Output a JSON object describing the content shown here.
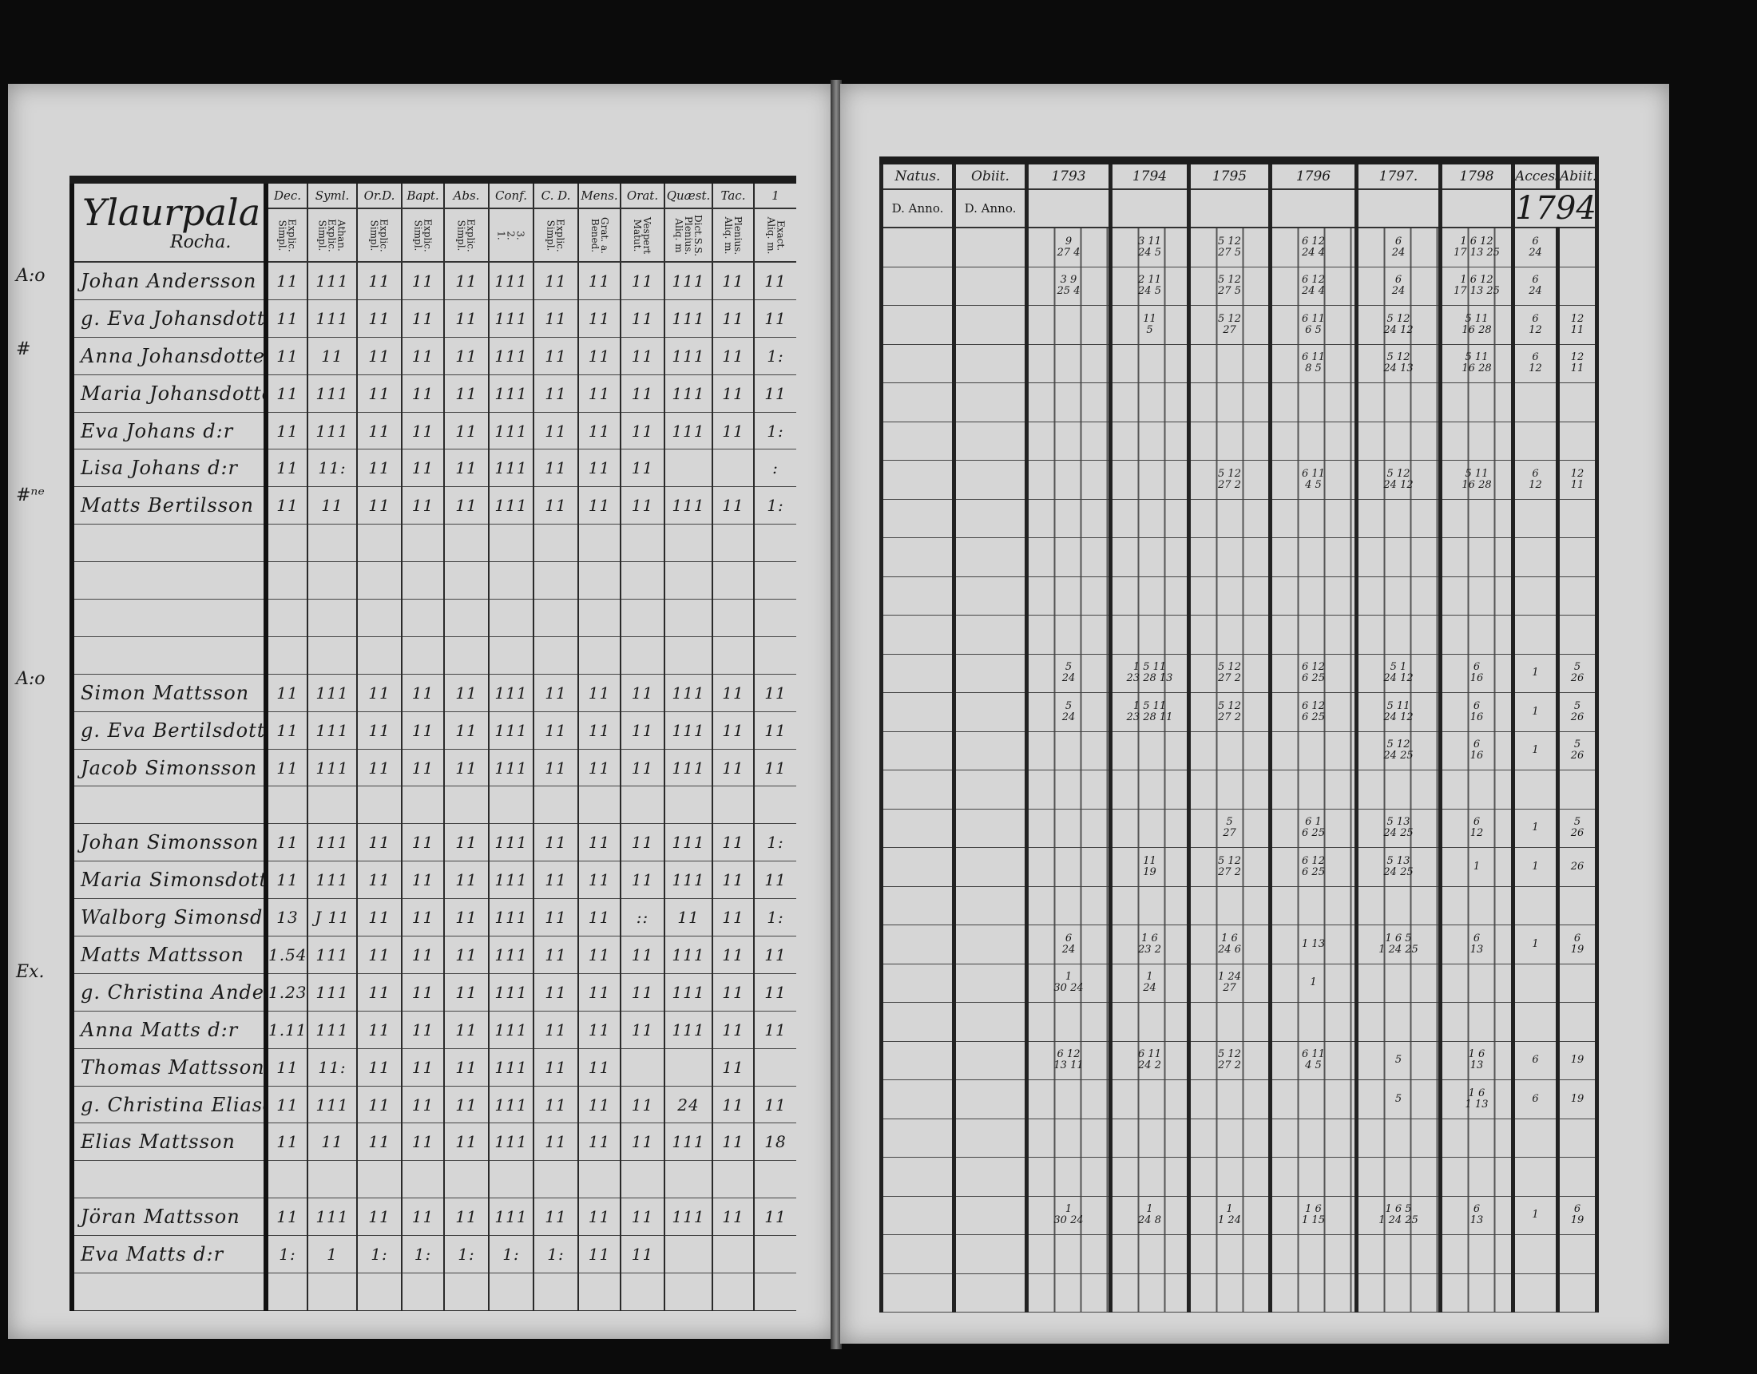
{
  "left_page": {
    "title": "Ylaurpala",
    "subtitle": "Rocha.",
    "columns": [
      {
        "label": "Dec.",
        "sub": "Explic.\nSimpl."
      },
      {
        "label": "Syml.",
        "sub": "Athan.\nExplic.\nSimpl."
      },
      {
        "label": "Or.D.",
        "sub": "Explic.\nSimpl."
      },
      {
        "label": "Bapt.",
        "sub": "Explic.\nSimpl."
      },
      {
        "label": "Abs.",
        "sub": "Explic.\nSimpl."
      },
      {
        "label": "Conf.",
        "sub": "3.\n2.\n1."
      },
      {
        "label": "C. D.",
        "sub": "Explic.\nSimpl."
      },
      {
        "label": "Mens.",
        "sub": "Grat. a.\nBened."
      },
      {
        "label": "Orat.",
        "sub": "Vespert\nMatut."
      },
      {
        "label": "Quæst.",
        "sub": "Dict.S.S.\nPlenius.\nAliq. m"
      },
      {
        "label": "Tac.",
        "sub": "Plenius.\nAliq. m."
      },
      {
        "label": "1",
        "sub": "Exact.\nAliq. m."
      }
    ],
    "rows": [
      {
        "note": "A:o",
        "name": "Johan Andersson",
        "marks": [
          "11",
          "111",
          "11",
          "11",
          "11",
          "111",
          "11",
          "11",
          "11",
          "111",
          "11",
          "11"
        ]
      },
      {
        "note": "",
        "name": "g. Eva Johansdotter",
        "marks": [
          "11",
          "111",
          "11",
          "11",
          "11",
          "111",
          "11",
          "11",
          "11",
          "111",
          "11",
          "11"
        ]
      },
      {
        "note": "#",
        "name": "Anna Johansdotter",
        "marks": [
          "11",
          "11",
          "11",
          "11",
          "11",
          "111",
          "11",
          "11",
          "11",
          "111",
          "11",
          "1:"
        ]
      },
      {
        "note": "",
        "name": "Maria Johansdotter",
        "marks": [
          "11",
          "111",
          "11",
          "11",
          "11",
          "111",
          "11",
          "11",
          "11",
          "111",
          "11",
          "11"
        ]
      },
      {
        "note": "",
        "name": "Eva Johans d:r",
        "marks": [
          "11",
          "111",
          "11",
          "11",
          "11",
          "111",
          "11",
          "11",
          "11",
          "111",
          "11",
          "1:"
        ]
      },
      {
        "note": "",
        "name": "Lisa Johans d:r",
        "marks": [
          "11",
          "11:",
          "11",
          "11",
          "11",
          "111",
          "11",
          "11",
          "11",
          "",
          "",
          ":"
        ]
      },
      {
        "note": "#ⁿᵉ",
        "name": "Matts Bertilsson",
        "marks": [
          "11",
          "11",
          "11",
          "11",
          "11",
          "111",
          "11",
          "11",
          "11",
          "111",
          "11",
          "1:"
        ]
      },
      {
        "note": "",
        "name": "",
        "marks": []
      },
      {
        "note": "",
        "name": "",
        "marks": []
      },
      {
        "note": "",
        "name": "",
        "marks": []
      },
      {
        "note": "",
        "name": "",
        "marks": []
      },
      {
        "note": "A:o",
        "name": "Simon Mattsson",
        "marks": [
          "11",
          "111",
          "11",
          "11",
          "11",
          "111",
          "11",
          "11",
          "11",
          "111",
          "11",
          "11"
        ]
      },
      {
        "note": "",
        "name": "g. Eva Bertilsdotter",
        "marks": [
          "11",
          "111",
          "11",
          "11",
          "11",
          "111",
          "11",
          "11",
          "11",
          "111",
          "11",
          "11"
        ]
      },
      {
        "note": "",
        "name": "Jacob Simonsson",
        "marks": [
          "11",
          "111",
          "11",
          "11",
          "11",
          "111",
          "11",
          "11",
          "11",
          "111",
          "11",
          "11"
        ]
      },
      {
        "note": "",
        "name": "",
        "marks": []
      },
      {
        "note": "",
        "name": "Johan Simonsson",
        "marks": [
          "11",
          "111",
          "11",
          "11",
          "11",
          "111",
          "11",
          "11",
          "11",
          "111",
          "11",
          "1:"
        ]
      },
      {
        "note": "",
        "name": "Maria Simonsdotter",
        "marks": [
          "11",
          "111",
          "11",
          "11",
          "11",
          "111",
          "11",
          "11",
          "11",
          "111",
          "11",
          "11"
        ]
      },
      {
        "note": "",
        "name": "Walborg Simonsd:r",
        "marks": [
          "13",
          "J 11",
          "11",
          "11",
          "11",
          "111",
          "11",
          "11",
          "::",
          "11",
          "11",
          "1:"
        ]
      },
      {
        "note": "",
        "name": "Matts Mattsson",
        "marks": [
          "1.54",
          "111",
          "11",
          "11",
          "11",
          "111",
          "11",
          "11",
          "11",
          "111",
          "11",
          "11"
        ]
      },
      {
        "note": "Ex.",
        "name": "g. Christina Andersd:r",
        "marks": [
          "1.23",
          "111",
          "11",
          "11",
          "11",
          "111",
          "11",
          "11",
          "11",
          "111",
          "11",
          "11"
        ]
      },
      {
        "note": "",
        "name": "Anna Matts d:r",
        "marks": [
          "1.11",
          "111",
          "11",
          "11",
          "11",
          "111",
          "11",
          "11",
          "11",
          "111",
          "11",
          "11"
        ]
      },
      {
        "note": "",
        "name": "Thomas Mattsson",
        "marks": [
          "11",
          "11:",
          "11",
          "11",
          "11",
          "111",
          "11",
          "11",
          "",
          "",
          "11",
          ""
        ]
      },
      {
        "note": "",
        "name": "g. Christina Eliasd:r",
        "marks": [
          "11",
          "111",
          "11",
          "11",
          "11",
          "111",
          "11",
          "11",
          "11",
          "24",
          "11",
          "11"
        ]
      },
      {
        "note": "",
        "name": "Elias Mattsson",
        "marks": [
          "11",
          "11",
          "11",
          "11",
          "11",
          "111",
          "11",
          "11",
          "11",
          "111",
          "11",
          "18"
        ]
      },
      {
        "note": "",
        "name": "",
        "marks": []
      },
      {
        "note": "",
        "name": "Jöran Mattsson",
        "marks": [
          "11",
          "111",
          "11",
          "11",
          "11",
          "111",
          "11",
          "11",
          "11",
          "111",
          "11",
          "11"
        ]
      },
      {
        "note": "",
        "name": "Eva Matts d:r",
        "marks": [
          "1:",
          "1",
          "1:",
          "1:",
          "1:",
          "1:",
          "1:",
          "11",
          "11",
          "",
          "",
          ""
        ]
      },
      {
        "note": "",
        "name": "",
        "marks": []
      }
    ]
  },
  "right_page": {
    "columns": [
      {
        "label": "Natus.",
        "sub": "D. Anno."
      },
      {
        "label": "Obiit.",
        "sub": "D. Anno."
      },
      {
        "label": "1793",
        "sub": ""
      },
      {
        "label": "1794",
        "sub": ""
      },
      {
        "label": "1795",
        "sub": ""
      },
      {
        "label": "1796",
        "sub": ""
      },
      {
        "label": "1797.",
        "sub": ""
      },
      {
        "label": "1798",
        "sub": ""
      },
      {
        "label": "Access.",
        "sub": ""
      },
      {
        "label": "Abiit.",
        "sub": ""
      }
    ],
    "accessit_year": "1794.",
    "rows": {
      "0": [
        "",
        "",
        "9\n27 4",
        "3 11\n24 5",
        "5 12\n27 5",
        "6 12\n24 4",
        "6\n24",
        "1 6 12\n17 13 25",
        "6\n24",
        ""
      ],
      "1": [
        "",
        "",
        "3 9\n25 4",
        "2 11\n24 5",
        "5 12\n27 5",
        "6 12\n24 4",
        "6\n24",
        "1 6 12\n17 13 25",
        "6\n24",
        ""
      ],
      "2": [
        "",
        "",
        "",
        "11\n5",
        "5 12\n27",
        "6 11\n6 5",
        "5 12\n24 12",
        "5 11\n16 28",
        "6\n12",
        "12\n11"
      ],
      "3": [
        "",
        "",
        "",
        "",
        "",
        "6 11\n8 5",
        "5 12\n24 13",
        "5 11\n16 28",
        "6\n12",
        "12\n11"
      ],
      "6": [
        "",
        "",
        "",
        "",
        "5 12\n27 2",
        "6 11\n4 5",
        "5 12\n24 12",
        "5 11\n16 28",
        "6\n12",
        "12\n11"
      ],
      "11": [
        "",
        "",
        "5\n24",
        "1 5 11\n23 28 13",
        "5 12\n27 2",
        "6 12\n6 25",
        "5 1\n24 12",
        "6\n16",
        "1",
        "5\n26"
      ],
      "12": [
        "",
        "",
        "5\n24",
        "1 5 11\n23 28 11",
        "5 12\n27 2",
        "6 12\n6 25",
        "5 11\n24 12",
        "6\n16",
        "1",
        "5\n26"
      ],
      "13": [
        "",
        "",
        "",
        "",
        "",
        "",
        "5 12\n24 25",
        "6\n16",
        "1",
        "5\n26"
      ],
      "15": [
        "",
        "",
        "",
        "",
        "5\n27",
        "6 1\n6 25",
        "5 13\n24 25",
        "6\n12",
        "1",
        "5\n26"
      ],
      "16": [
        "",
        "",
        "",
        "11\n19",
        "5 12\n27 2",
        "6 12\n6 25",
        "5 13\n24 25",
        "1",
        "1",
        "26"
      ],
      "18": [
        "",
        "",
        "6\n24",
        "1 6\n23 2",
        "1 6\n24 6",
        "1 13",
        "1 6 5\n1 24 25",
        "6\n13",
        "1",
        "6\n19"
      ],
      "19": [
        "",
        "",
        "1\n30 24",
        "1\n24",
        "1 24\n27",
        "1",
        "",
        "",
        "",
        ""
      ],
      "21": [
        "",
        "",
        "6 12\n13 11",
        "6 11\n24 2",
        "5 12\n27 2",
        "6 11\n4 5",
        "5",
        "1 6\n13",
        "6",
        "19"
      ],
      "22": [
        "",
        "",
        "",
        "",
        "",
        "",
        "5",
        "1 6\n1 13",
        "6",
        "19"
      ],
      "25": [
        "",
        "",
        "1\n30 24",
        "1\n24 8",
        "1\n1 24",
        "1 6\n1 15",
        "1 6 5\n1 24 25",
        "6\n13",
        "1",
        "6\n19"
      ]
    }
  }
}
